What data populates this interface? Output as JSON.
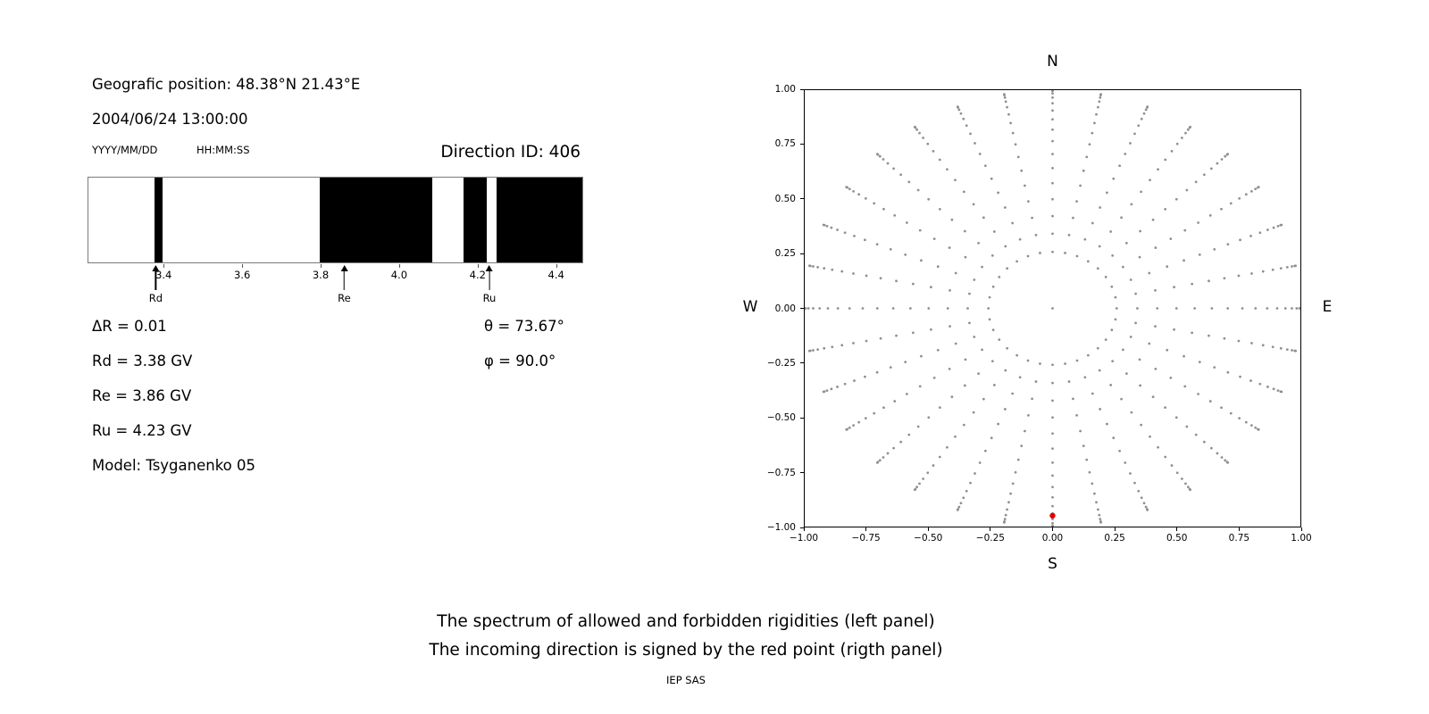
{
  "page": {
    "background": "#ffffff",
    "captions": {
      "line1": "The spectrum of allowed and forbidden rigidities (left panel)",
      "line2": "The incoming direction is signed by the red point (rigth panel)",
      "credit": "IEP SAS"
    }
  },
  "left_panel": {
    "geographic_position": "Geografic position: 48.38°N 21.43°E",
    "datetime": "2004/06/24 13:00:00",
    "date_format_label": "YYYY/MM/DD",
    "time_format_label": "HH:MM:SS",
    "direction_id_label": "Direction ID: 406",
    "params_left": [
      "ΔR = 0.01",
      "Rd = 3.38 GV",
      "Re = 3.86 GV",
      "Ru = 4.23 GV",
      "Model: Tsyganenko 05"
    ],
    "params_right": [
      "θ = 73.67°",
      "φ = 90.0°"
    ]
  },
  "chart_data": [
    {
      "id": "rigidity_spectrum",
      "type": "bands",
      "title": "",
      "xlabel": "",
      "ylabel": "",
      "xlim": [
        3.206,
        4.469
      ],
      "xticks": [
        3.4,
        3.6,
        3.8,
        4.0,
        4.2,
        4.4
      ],
      "xtick_labels": [
        "3.4",
        "3.6",
        "3.8",
        "4.0",
        "4.2",
        "4.4"
      ],
      "forbidden_bands_gv": [
        [
          3.375,
          3.395
        ],
        [
          3.798,
          4.085
        ],
        [
          4.165,
          4.225
        ],
        [
          4.25,
          4.469
        ]
      ],
      "forbidden_color": "#000000",
      "allowed_color": "#ffffff",
      "cutoff_markers": [
        {
          "label": "Rd",
          "value_gv": 3.38
        },
        {
          "label": "Re",
          "value_gv": 3.86
        },
        {
          "label": "Ru",
          "value_gv": 4.23
        }
      ]
    },
    {
      "id": "incoming_direction_map",
      "type": "scatter",
      "title": "",
      "xlabel": "",
      "ylabel": "",
      "xlim": [
        -1.0,
        1.0
      ],
      "ylim": [
        -1.0,
        1.0
      ],
      "xticks": [
        -1.0,
        -0.75,
        -0.5,
        -0.25,
        0.0,
        0.25,
        0.5,
        0.75,
        1.0
      ],
      "yticks": [
        -1.0,
        -0.75,
        -0.5,
        -0.25,
        0.0,
        0.25,
        0.5,
        0.75,
        1.0
      ],
      "grid": false,
      "compass_labels": {
        "top": "N",
        "bottom": "S",
        "left": "W",
        "right": "E"
      },
      "grid_points": {
        "description": "direction grid of gray dots: azimuth spokes every 11.25° (32 spokes), zenith angles 15°–90° in 5° steps, projected as r = sin(zenith), plus a single centre dot; dots bunch toward the outer rim",
        "azimuth_count": 32,
        "zenith_start_deg": 15,
        "zenith_end_deg": 90,
        "zenith_step_deg": 5,
        "include_center_dot": true,
        "color": "#909090"
      },
      "incoming_direction_point": {
        "x": 0.0,
        "y": -0.95,
        "color": "#e00000"
      }
    }
  ]
}
